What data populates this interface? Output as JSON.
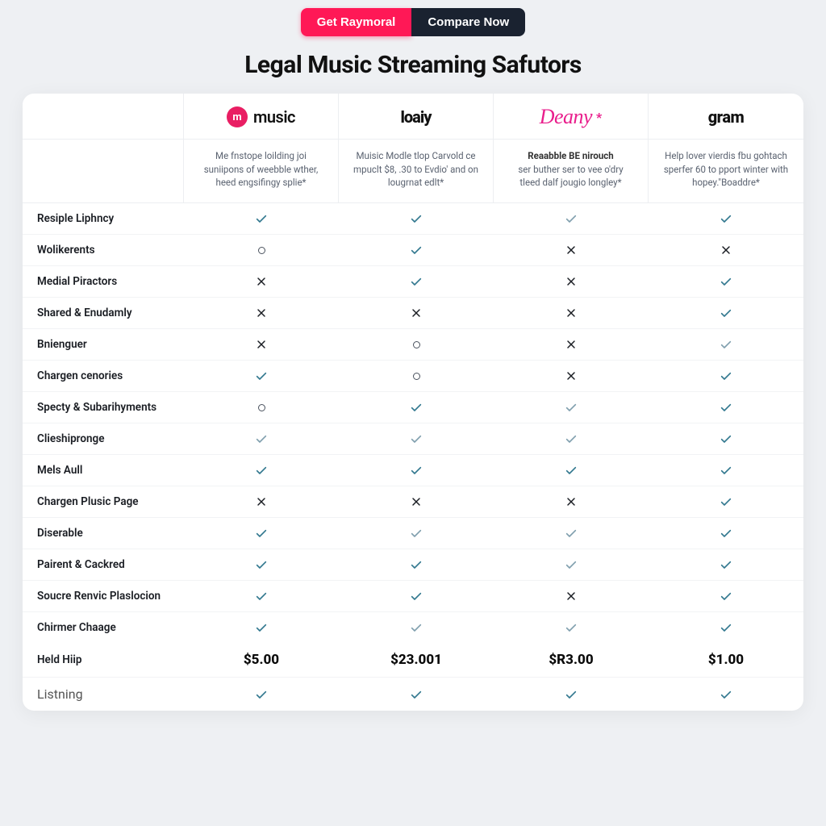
{
  "buttons": {
    "primary": "Get Raymoral",
    "secondary": "Compare Now"
  },
  "title": "Legal Music Streaming Safutors",
  "colors": {
    "accent": "#ff1856",
    "dark": "#1a2230",
    "check": "#32788f",
    "brand1": "#e91e63",
    "brand3": "#e91e8c",
    "bg": "#eef0f3"
  },
  "brands": [
    {
      "name": "music",
      "badge": "m",
      "desc_label": "",
      "desc": "Me fnstope loilding joi suniipons of weebble wther, heed engsifingy splie*"
    },
    {
      "name": "loaiy",
      "badge": "",
      "desc_label": "",
      "desc": "Muisic Modle tlop Carvold ce mpuclt $8, .30 to Evdio' and on lougrnat edlt*"
    },
    {
      "name": "Deany",
      "badge": "",
      "star": "*",
      "desc_label": "Reaabble BE nirouch",
      "desc": "ser buther ser to vee o'dry tleed dalf jougio longley*"
    },
    {
      "name": "gram",
      "badge": "",
      "desc_label": "",
      "desc": "Help lover vierdis fbu gohtach sperfer 60 to pport winter with hopey.\"Boaddre*"
    }
  ],
  "features": [
    {
      "label": "Resiple Liphncy",
      "cells": [
        "check",
        "check",
        "check-light",
        "check"
      ]
    },
    {
      "label": "Wolikerents",
      "cells": [
        "circle",
        "check",
        "cross",
        "cross"
      ]
    },
    {
      "label": "Medial Piractors",
      "cells": [
        "cross",
        "check",
        "cross",
        "check"
      ]
    },
    {
      "label": "Shared & Enudamly",
      "cells": [
        "cross",
        "cross",
        "cross",
        "check"
      ]
    },
    {
      "label": "Bnienguer",
      "cells": [
        "cross",
        "circle",
        "cross",
        "check-light"
      ]
    },
    {
      "label": "Chargen cenories",
      "cells": [
        "check",
        "circle",
        "cross",
        "check"
      ]
    },
    {
      "label": "Specty & Subarihyments",
      "cells": [
        "circle",
        "check",
        "check-light",
        "check"
      ]
    },
    {
      "label": "Clieshipronge",
      "cells": [
        "check-light",
        "check-light",
        "check-light",
        "check"
      ]
    },
    {
      "label": "Mels Aull",
      "cells": [
        "check",
        "check",
        "check",
        "check"
      ]
    },
    {
      "label": "Chargen Plusic Page",
      "cells": [
        "cross",
        "cross",
        "cross",
        "check"
      ]
    },
    {
      "label": "Diserable",
      "cells": [
        "check",
        "check-light",
        "check-light",
        "check"
      ]
    },
    {
      "label": "Pairent & Cackred",
      "cells": [
        "check",
        "check",
        "check-light",
        "check"
      ]
    },
    {
      "label": "Soucre Renvic Plaslocion",
      "cells": [
        "check",
        "check",
        "cross",
        "check"
      ]
    },
    {
      "label": "Chirmer Chaage",
      "cells": [
        "check",
        "check-light",
        "check-light",
        "check"
      ]
    }
  ],
  "price_row": {
    "label": "Held Hiip",
    "values": [
      "$5.00",
      "$23.001",
      "$R3.00",
      "$1.00"
    ]
  },
  "final_row": {
    "label": "Listning",
    "cells": [
      "check",
      "check",
      "check",
      "check"
    ]
  }
}
